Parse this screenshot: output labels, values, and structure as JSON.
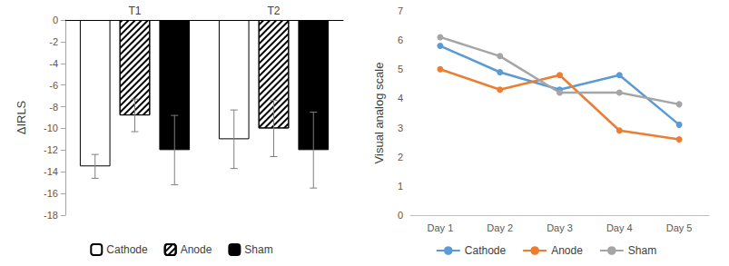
{
  "chart_data": [
    {
      "type": "bar",
      "y_label": "ΔIRLS",
      "categories": [
        "T1",
        "T2"
      ],
      "series": [
        {
          "name": "Cathode",
          "color": "#ffffff",
          "values": [
            -13.5,
            -11.0
          ],
          "errors": [
            1.1,
            2.7
          ]
        },
        {
          "name": "Anode",
          "color": "#ffffff",
          "values": [
            -8.8,
            -10.0
          ],
          "errors": [
            1.5,
            2.6
          ]
        },
        {
          "name": "Sham",
          "color": "#000000",
          "values": [
            -12.0,
            -12.0
          ],
          "errors": [
            3.2,
            3.5
          ]
        }
      ],
      "ylim": [
        -18,
        0
      ],
      "yticks": [
        0,
        -2,
        -4,
        -6,
        -8,
        -10,
        -12,
        -14,
        -16,
        -18
      ],
      "grid": false,
      "legend": "bottom"
    },
    {
      "type": "line",
      "y_label": "Visual analog scale",
      "categories": [
        "Day 1",
        "Day 2",
        "Day 3",
        "Day 4",
        "Day 5"
      ],
      "series": [
        {
          "name": "Cathode",
          "color": "#5b9bd5",
          "marker": "circle",
          "values": [
            5.8,
            4.9,
            4.3,
            4.8,
            3.1
          ]
        },
        {
          "name": "Anode",
          "color": "#ed7d31",
          "marker": "circle",
          "values": [
            5.0,
            4.3,
            4.8,
            2.9,
            2.6
          ]
        },
        {
          "name": "Sham",
          "color": "#a5a5a5",
          "marker": "circle",
          "values": [
            6.1,
            5.45,
            4.2,
            4.2,
            3.8
          ]
        }
      ],
      "ylim": [
        0,
        7
      ],
      "yticks": [
        0,
        1,
        2,
        3,
        4,
        5,
        6,
        7
      ],
      "grid": false,
      "legend": "bottom"
    }
  ]
}
